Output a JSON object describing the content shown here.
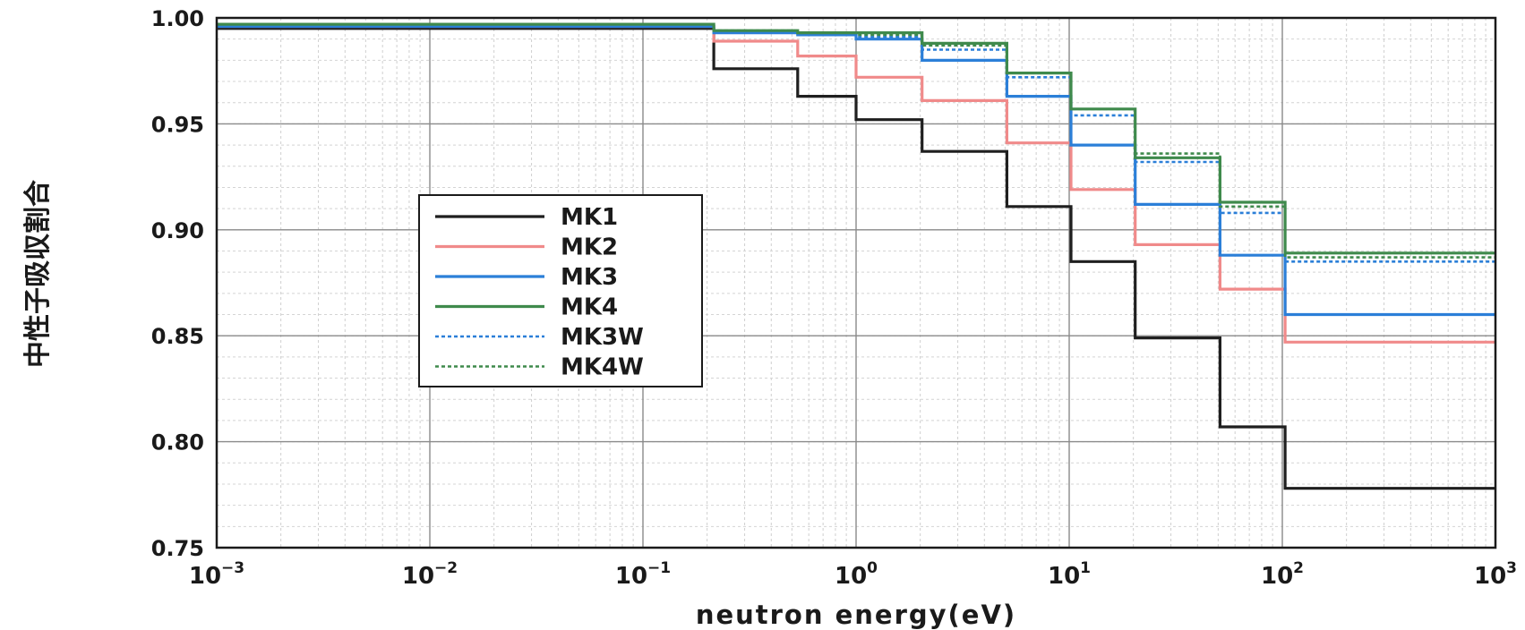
{
  "chart_data": {
    "type": "line",
    "xlabel": "neutron energy(eV)",
    "ylabel": "中性子吸収割合",
    "x_scale": "log",
    "xlim": [
      0.001,
      1000
    ],
    "ylim": [
      0.75,
      1.0
    ],
    "x_ticks": [
      {
        "base": "10",
        "exp": "−3"
      },
      {
        "base": "10",
        "exp": "−2"
      },
      {
        "base": "10",
        "exp": "−1"
      },
      {
        "base": "10",
        "exp": "0"
      },
      {
        "base": "10",
        "exp": "1"
      },
      {
        "base": "10",
        "exp": "2"
      },
      {
        "base": "10",
        "exp": "3"
      }
    ],
    "y_ticks": [
      "0.75",
      "0.80",
      "0.85",
      "0.90",
      "0.95",
      "1.00"
    ],
    "grid": true,
    "legend_position": "center-left",
    "step_edges": [
      0.001,
      0.215,
      0.532,
      1.0,
      2.04,
      5.1,
      10.2,
      20.4,
      51,
      103,
      1000
    ],
    "series": [
      {
        "name": "MK1",
        "style": "solid",
        "color": "#1f1f1f",
        "values": [
          0.995,
          0.976,
          0.963,
          0.952,
          0.937,
          0.911,
          0.885,
          0.849,
          0.807,
          0.778
        ]
      },
      {
        "name": "MK2",
        "style": "solid",
        "color": "#f08a8a",
        "values": [
          0.996,
          0.989,
          0.982,
          0.972,
          0.961,
          0.941,
          0.919,
          0.893,
          0.872,
          0.847
        ]
      },
      {
        "name": "MK3",
        "style": "solid",
        "color": "#2b7fd8",
        "values": [
          0.996,
          0.993,
          0.992,
          0.99,
          0.98,
          0.963,
          0.94,
          0.912,
          0.888,
          0.86
        ]
      },
      {
        "name": "MK4",
        "style": "solid",
        "color": "#3f8a4c",
        "values": [
          0.997,
          0.994,
          0.993,
          0.993,
          0.988,
          0.974,
          0.957,
          0.934,
          0.913,
          0.889
        ]
      },
      {
        "name": "MK3W",
        "style": "dotted",
        "color": "#2b7fd8",
        "values": [
          0.996,
          0.993,
          0.993,
          0.991,
          0.985,
          0.972,
          0.954,
          0.932,
          0.908,
          0.885
        ]
      },
      {
        "name": "MK4W",
        "style": "dotted",
        "color": "#3f8a4c",
        "values": [
          0.997,
          0.994,
          0.993,
          0.992,
          0.987,
          0.974,
          0.957,
          0.936,
          0.911,
          0.887
        ]
      }
    ]
  }
}
